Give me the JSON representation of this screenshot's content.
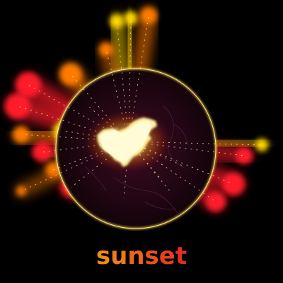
{
  "caption": {
    "text": "sunset",
    "letters": [
      "s",
      "u",
      "n",
      "s",
      "e",
      "t"
    ],
    "letter_colors": [
      "#f08a1a",
      "#ef7a1a",
      "#ec651c",
      "#e9521d",
      "#e6401e",
      "#e2301f"
    ]
  },
  "colors": {
    "background": "#000000",
    "globe_fill": "#200612",
    "globe_rim": "#ffd23c",
    "highlight": "#fff2a0",
    "ray_hot": "#ffd700",
    "ray_warm": "#ff7a00",
    "ray_cool": "#ff1a2a"
  }
}
